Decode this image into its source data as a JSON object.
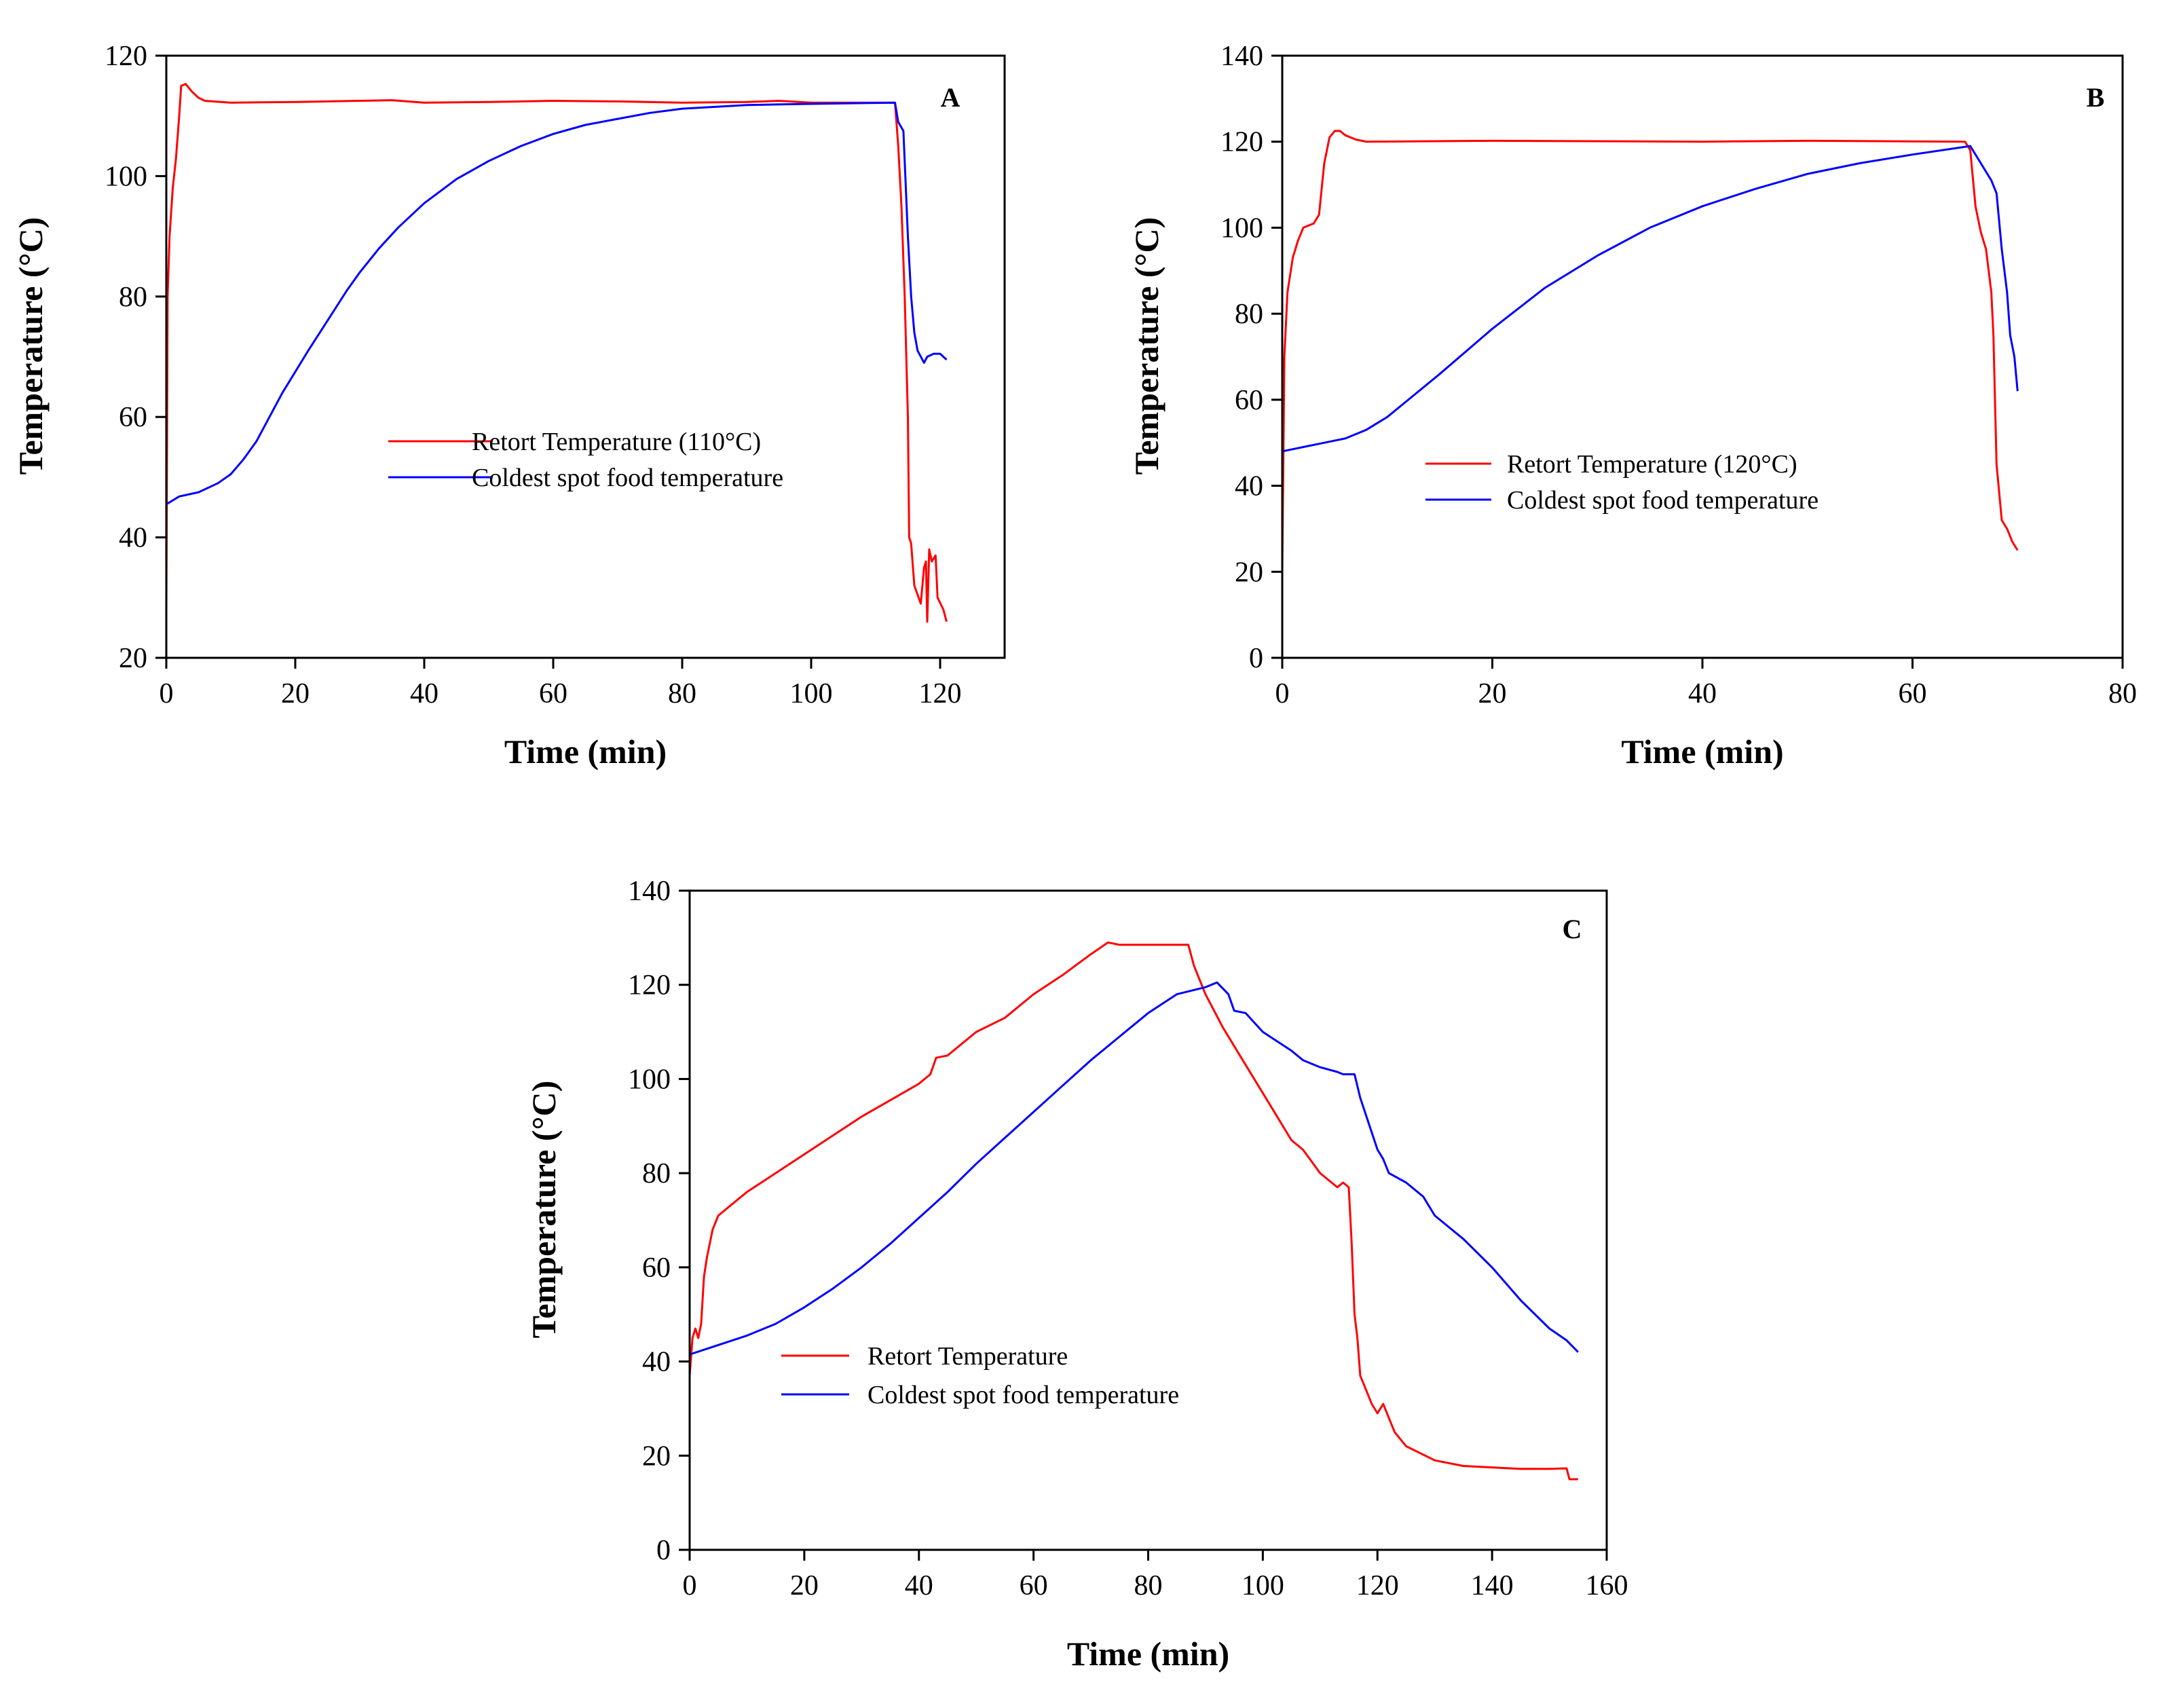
{
  "chart_data": [
    {
      "type": "line",
      "panel_label": "A",
      "xlabel": "Time (min)",
      "ylabel": "Temperature (°C)",
      "xlim": [
        0,
        130
      ],
      "ylim": [
        20,
        120
      ],
      "xticks": [
        0,
        20,
        40,
        60,
        80,
        100,
        120
      ],
      "yticks": [
        20,
        40,
        60,
        80,
        100,
        120
      ],
      "grid": false,
      "legend_position": "center",
      "series": [
        {
          "name": "Retort Temperature (110°C)",
          "color": "#ff0000",
          "points": [
            [
              0,
              27
            ],
            [
              0.2,
              80
            ],
            [
              0.5,
              90
            ],
            [
              1,
              98
            ],
            [
              1.5,
              103
            ],
            [
              2,
              110
            ],
            [
              2.3,
              115
            ],
            [
              3,
              115.3
            ],
            [
              4,
              114
            ],
            [
              5,
              113
            ],
            [
              6,
              112.5
            ],
            [
              10,
              112.2
            ],
            [
              20,
              112.3
            ],
            [
              30,
              112.5
            ],
            [
              35,
              112.6
            ],
            [
              40,
              112.2
            ],
            [
              50,
              112.3
            ],
            [
              60,
              112.5
            ],
            [
              70,
              112.4
            ],
            [
              80,
              112.2
            ],
            [
              90,
              112.3
            ],
            [
              95,
              112.5
            ],
            [
              100,
              112.2
            ],
            [
              113,
              112.2
            ],
            [
              113.5,
              105
            ],
            [
              114,
              95
            ],
            [
              114.5,
              80
            ],
            [
              115,
              60
            ],
            [
              115.2,
              40
            ],
            [
              115.5,
              39
            ],
            [
              116,
              32
            ],
            [
              117,
              29
            ],
            [
              117.5,
              35
            ],
            [
              117.8,
              36
            ],
            [
              118,
              26
            ],
            [
              118.3,
              38
            ],
            [
              118.7,
              36
            ],
            [
              119.3,
              37
            ],
            [
              119.6,
              30
            ],
            [
              120.5,
              28
            ],
            [
              121,
              26
            ]
          ]
        },
        {
          "name": "Coldest spot food temperature",
          "color": "#0000ff",
          "points": [
            [
              0,
              45.5
            ],
            [
              2,
              46.8
            ],
            [
              5,
              47.5
            ],
            [
              8,
              49
            ],
            [
              10,
              50.5
            ],
            [
              12,
              53
            ],
            [
              14,
              56
            ],
            [
              16,
              60
            ],
            [
              18,
              64
            ],
            [
              20,
              67.5
            ],
            [
              22,
              71
            ],
            [
              25,
              76
            ],
            [
              28,
              81
            ],
            [
              30,
              84
            ],
            [
              33,
              88
            ],
            [
              36,
              91.5
            ],
            [
              40,
              95.5
            ],
            [
              45,
              99.5
            ],
            [
              50,
              102.5
            ],
            [
              55,
              105
            ],
            [
              60,
              107
            ],
            [
              65,
              108.5
            ],
            [
              70,
              109.5
            ],
            [
              75,
              110.5
            ],
            [
              80,
              111.2
            ],
            [
              90,
              111.8
            ],
            [
              100,
              112
            ],
            [
              113,
              112.2
            ],
            [
              113.5,
              109
            ],
            [
              114.3,
              107.5
            ],
            [
              115,
              90
            ],
            [
              115.5,
              80
            ],
            [
              116,
              74
            ],
            [
              116.5,
              71
            ],
            [
              117.5,
              69
            ],
            [
              118,
              70
            ],
            [
              119,
              70.5
            ],
            [
              120,
              70.5
            ],
            [
              121,
              69.5
            ]
          ]
        }
      ]
    },
    {
      "type": "line",
      "panel_label": "B",
      "xlabel": "Time (min)",
      "ylabel": "Temperature (°C)",
      "xlim": [
        0,
        80
      ],
      "ylim": [
        0,
        140
      ],
      "xticks": [
        0,
        20,
        40,
        60,
        80
      ],
      "yticks": [
        0,
        20,
        40,
        60,
        80,
        100,
        120,
        140
      ],
      "grid": false,
      "legend_position": "bottom-center",
      "series": [
        {
          "name": "Retort Temperature (120°C)",
          "color": "#ff0000",
          "points": [
            [
              0,
              20
            ],
            [
              0.2,
              70
            ],
            [
              0.5,
              85
            ],
            [
              1,
              93
            ],
            [
              1.5,
              97
            ],
            [
              2,
              100
            ],
            [
              3,
              101
            ],
            [
              3.5,
              103
            ],
            [
              4,
              115
            ],
            [
              4.5,
              121
            ],
            [
              5,
              122.5
            ],
            [
              5.5,
              122.5
            ],
            [
              6,
              121.5
            ],
            [
              7,
              120.5
            ],
            [
              8,
              120
            ],
            [
              20,
              120.2
            ],
            [
              40,
              120
            ],
            [
              50,
              120.2
            ],
            [
              65,
              120
            ],
            [
              65.5,
              118
            ],
            [
              66,
              105
            ],
            [
              66.5,
              99
            ],
            [
              67,
              95
            ],
            [
              67.5,
              85
            ],
            [
              67.7,
              75
            ],
            [
              68,
              45
            ],
            [
              68.5,
              32
            ],
            [
              69,
              30
            ],
            [
              69.5,
              27
            ],
            [
              70,
              25
            ]
          ]
        },
        {
          "name": "Coldest spot food temperature",
          "color": "#0000ff",
          "points": [
            [
              0,
              48
            ],
            [
              2,
              49
            ],
            [
              4,
              50
            ],
            [
              6,
              51
            ],
            [
              8,
              53
            ],
            [
              10,
              56
            ],
            [
              12,
              60
            ],
            [
              15,
              66
            ],
            [
              20,
              76.5
            ],
            [
              25,
              86
            ],
            [
              30,
              93.5
            ],
            [
              35,
              100
            ],
            [
              40,
              105
            ],
            [
              45,
              109
            ],
            [
              50,
              112.5
            ],
            [
              55,
              115
            ],
            [
              60,
              117
            ],
            [
              65.5,
              119
            ],
            [
              66.5,
              115
            ],
            [
              67.5,
              111
            ],
            [
              68,
              108
            ],
            [
              68.5,
              95
            ],
            [
              69,
              85
            ],
            [
              69.3,
              75
            ],
            [
              69.7,
              70
            ],
            [
              70,
              62
            ]
          ]
        }
      ]
    },
    {
      "type": "line",
      "panel_label": "C",
      "xlabel": "Time (min)",
      "ylabel": "Temperature (°C)",
      "xlim": [
        0,
        160
      ],
      "ylim": [
        0,
        140
      ],
      "xticks": [
        0,
        20,
        40,
        60,
        80,
        100,
        120,
        140,
        160
      ],
      "yticks": [
        0,
        20,
        40,
        60,
        80,
        100,
        120,
        140
      ],
      "grid": false,
      "legend_position": "bottom-left",
      "series": [
        {
          "name": "Retort Temperature",
          "color": "#ff0000",
          "points": [
            [
              0,
              37
            ],
            [
              0.5,
              45
            ],
            [
              1,
              47
            ],
            [
              1.5,
              45
            ],
            [
              2,
              48
            ],
            [
              2.5,
              58
            ],
            [
              3,
              62
            ],
            [
              4,
              68
            ],
            [
              5,
              71
            ],
            [
              7,
              73
            ],
            [
              10,
              76
            ],
            [
              15,
              80
            ],
            [
              20,
              84
            ],
            [
              30,
              92
            ],
            [
              40,
              99
            ],
            [
              42,
              101
            ],
            [
              43,
              104.5
            ],
            [
              45,
              105
            ],
            [
              50,
              110
            ],
            [
              55,
              113
            ],
            [
              60,
              118
            ],
            [
              65,
              122
            ],
            [
              70,
              126.5
            ],
            [
              73,
              129
            ],
            [
              75,
              128.5
            ],
            [
              80,
              128.5
            ],
            [
              85,
              128.5
            ],
            [
              87,
              128.5
            ],
            [
              88,
              124
            ],
            [
              90,
              118
            ],
            [
              93,
              111
            ],
            [
              96,
              105
            ],
            [
              100,
              97
            ],
            [
              103,
              91
            ],
            [
              105,
              87
            ],
            [
              107,
              85
            ],
            [
              110,
              80
            ],
            [
              113,
              77
            ],
            [
              114,
              78
            ],
            [
              115,
              77
            ],
            [
              115.5,
              65
            ],
            [
              116,
              50
            ],
            [
              116.5,
              45
            ],
            [
              117,
              37
            ],
            [
              118,
              34
            ],
            [
              119,
              31
            ],
            [
              120,
              29
            ],
            [
              121,
              31
            ],
            [
              122,
              28
            ],
            [
              123,
              25
            ],
            [
              125,
              22
            ],
            [
              130,
              19
            ],
            [
              135,
              17.8
            ],
            [
              140,
              17.5
            ],
            [
              145,
              17.2
            ],
            [
              150,
              17.2
            ],
            [
              153,
              17.3
            ],
            [
              153.5,
              15
            ],
            [
              155,
              15
            ]
          ]
        },
        {
          "name": "Coldest spot food temperature",
          "color": "#0000ff",
          "points": [
            [
              0,
              41.5
            ],
            [
              5,
              43.5
            ],
            [
              10,
              45.5
            ],
            [
              15,
              48
            ],
            [
              20,
              51.5
            ],
            [
              25,
              55.5
            ],
            [
              30,
              60
            ],
            [
              35,
              65
            ],
            [
              40,
              70.5
            ],
            [
              45,
              76
            ],
            [
              50,
              82
            ],
            [
              55,
              87.5
            ],
            [
              60,
              93
            ],
            [
              65,
              98.5
            ],
            [
              70,
              104
            ],
            [
              75,
              109
            ],
            [
              80,
              114
            ],
            [
              85,
              118
            ],
            [
              90,
              119.5
            ],
            [
              92,
              120.5
            ],
            [
              94,
              118
            ],
            [
              95,
              114.5
            ],
            [
              97,
              114
            ],
            [
              100,
              110
            ],
            [
              105,
              106
            ],
            [
              107,
              104
            ],
            [
              110,
              102.5
            ],
            [
              113,
              101.5
            ],
            [
              114,
              101
            ],
            [
              116,
              101
            ],
            [
              117,
              96
            ],
            [
              120,
              85
            ],
            [
              121,
              83
            ],
            [
              122,
              80
            ],
            [
              125,
              78
            ],
            [
              128,
              75
            ],
            [
              130,
              71
            ],
            [
              135,
              66
            ],
            [
              140,
              60
            ],
            [
              145,
              53
            ],
            [
              150,
              47
            ],
            [
              153,
              44.5
            ],
            [
              155,
              42
            ]
          ]
        }
      ]
    }
  ]
}
